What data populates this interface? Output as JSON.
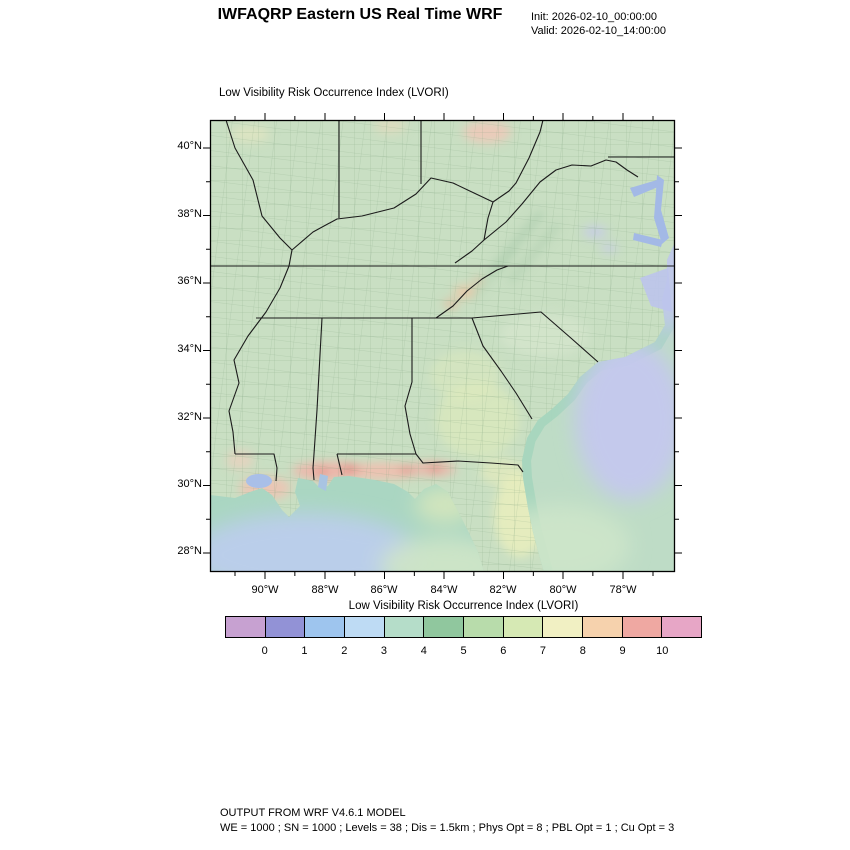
{
  "header": {
    "title": "IWFAQRP Eastern US Real Time WRF",
    "init": "Init: 2026-02-10_00:00:00",
    "valid": "Valid: 2026-02-10_14:00:00"
  },
  "plot": {
    "subtitle": "Low Visibility Risk Occurrence Index   (LVORI)"
  },
  "axes": {
    "lat": [
      "40°N",
      "38°N",
      "36°N",
      "34°N",
      "32°N",
      "30°N",
      "28°N"
    ],
    "lon": [
      "90°W",
      "88°W",
      "86°W",
      "84°W",
      "82°W",
      "80°W",
      "78°W"
    ]
  },
  "colorbar": {
    "title": "Low Visibility Risk Occurrence Index  (LVORI)",
    "ticks": [
      "0",
      "1",
      "2",
      "3",
      "4",
      "5",
      "6",
      "7",
      "8",
      "9",
      "10"
    ],
    "colors": [
      "#c7a1d1",
      "#9292d6",
      "#9ec5ee",
      "#bedbf4",
      "#b5ddc9",
      "#90c79e",
      "#b8dcab",
      "#d6e9b4",
      "#f1f0c3",
      "#f6d2ad",
      "#efa8a2",
      "#e7a6c6"
    ]
  },
  "footer": {
    "line1": "OUTPUT FROM WRF V4.6.1 MODEL",
    "line2": "WE = 1000 ; SN = 1000 ; Levels = 38 ; Dis = 1.5km ; Phys Opt = 8 ; PBL Opt = 1 ; Cu Opt = 3"
  },
  "chart_data": {
    "type": "heatmap",
    "title": "Low Visibility Risk Occurrence Index (LVORI)",
    "region": "Eastern US (WRF model domain with county and state outlines)",
    "x_ticks": [
      "90°W",
      "88°W",
      "86°W",
      "84°W",
      "82°W",
      "80°W",
      "78°W"
    ],
    "y_ticks": [
      "40°N",
      "38°N",
      "36°N",
      "34°N",
      "32°N",
      "30°N",
      "28°N"
    ],
    "legend_levels": [
      0,
      1,
      2,
      3,
      4,
      5,
      6,
      7,
      8,
      9,
      10
    ],
    "legend_colors": [
      "#c7a1d1",
      "#9292d6",
      "#9ec5ee",
      "#bedbf4",
      "#b5ddc9",
      "#90c79e",
      "#b8dcab",
      "#d6e9b4",
      "#f1f0c3",
      "#f6d2ad",
      "#efa8a2",
      "#e7a6c6"
    ],
    "legend_position": "bottom",
    "field_values": [
      {
        "area": "most inland land areas",
        "lvori": "3-5 (pale green)"
      },
      {
        "area": "Gulf coast band near 30-30.5N (LA, MS, AL, FL panhandle)",
        "lvori": "7-9 (pink/red)"
      },
      {
        "area": "southern Louisiana delta",
        "lvori": "6-8 (pink)"
      },
      {
        "area": "central Georgia and Florida peninsula",
        "lvori": "6-7 (pale yellow)"
      },
      {
        "area": "southern Appalachians spots",
        "lvori": "7-8 (orange)"
      },
      {
        "area": "near-shore Gulf and Atlantic waters",
        "lvori": "3-4 (teal green)"
      },
      {
        "area": "offshore Atlantic / SE corner and deep Gulf",
        "lvori": "1-2 (lavender blue)"
      },
      {
        "area": "Virginia small patches",
        "lvori": "1-2 (light blue)"
      }
    ]
  }
}
